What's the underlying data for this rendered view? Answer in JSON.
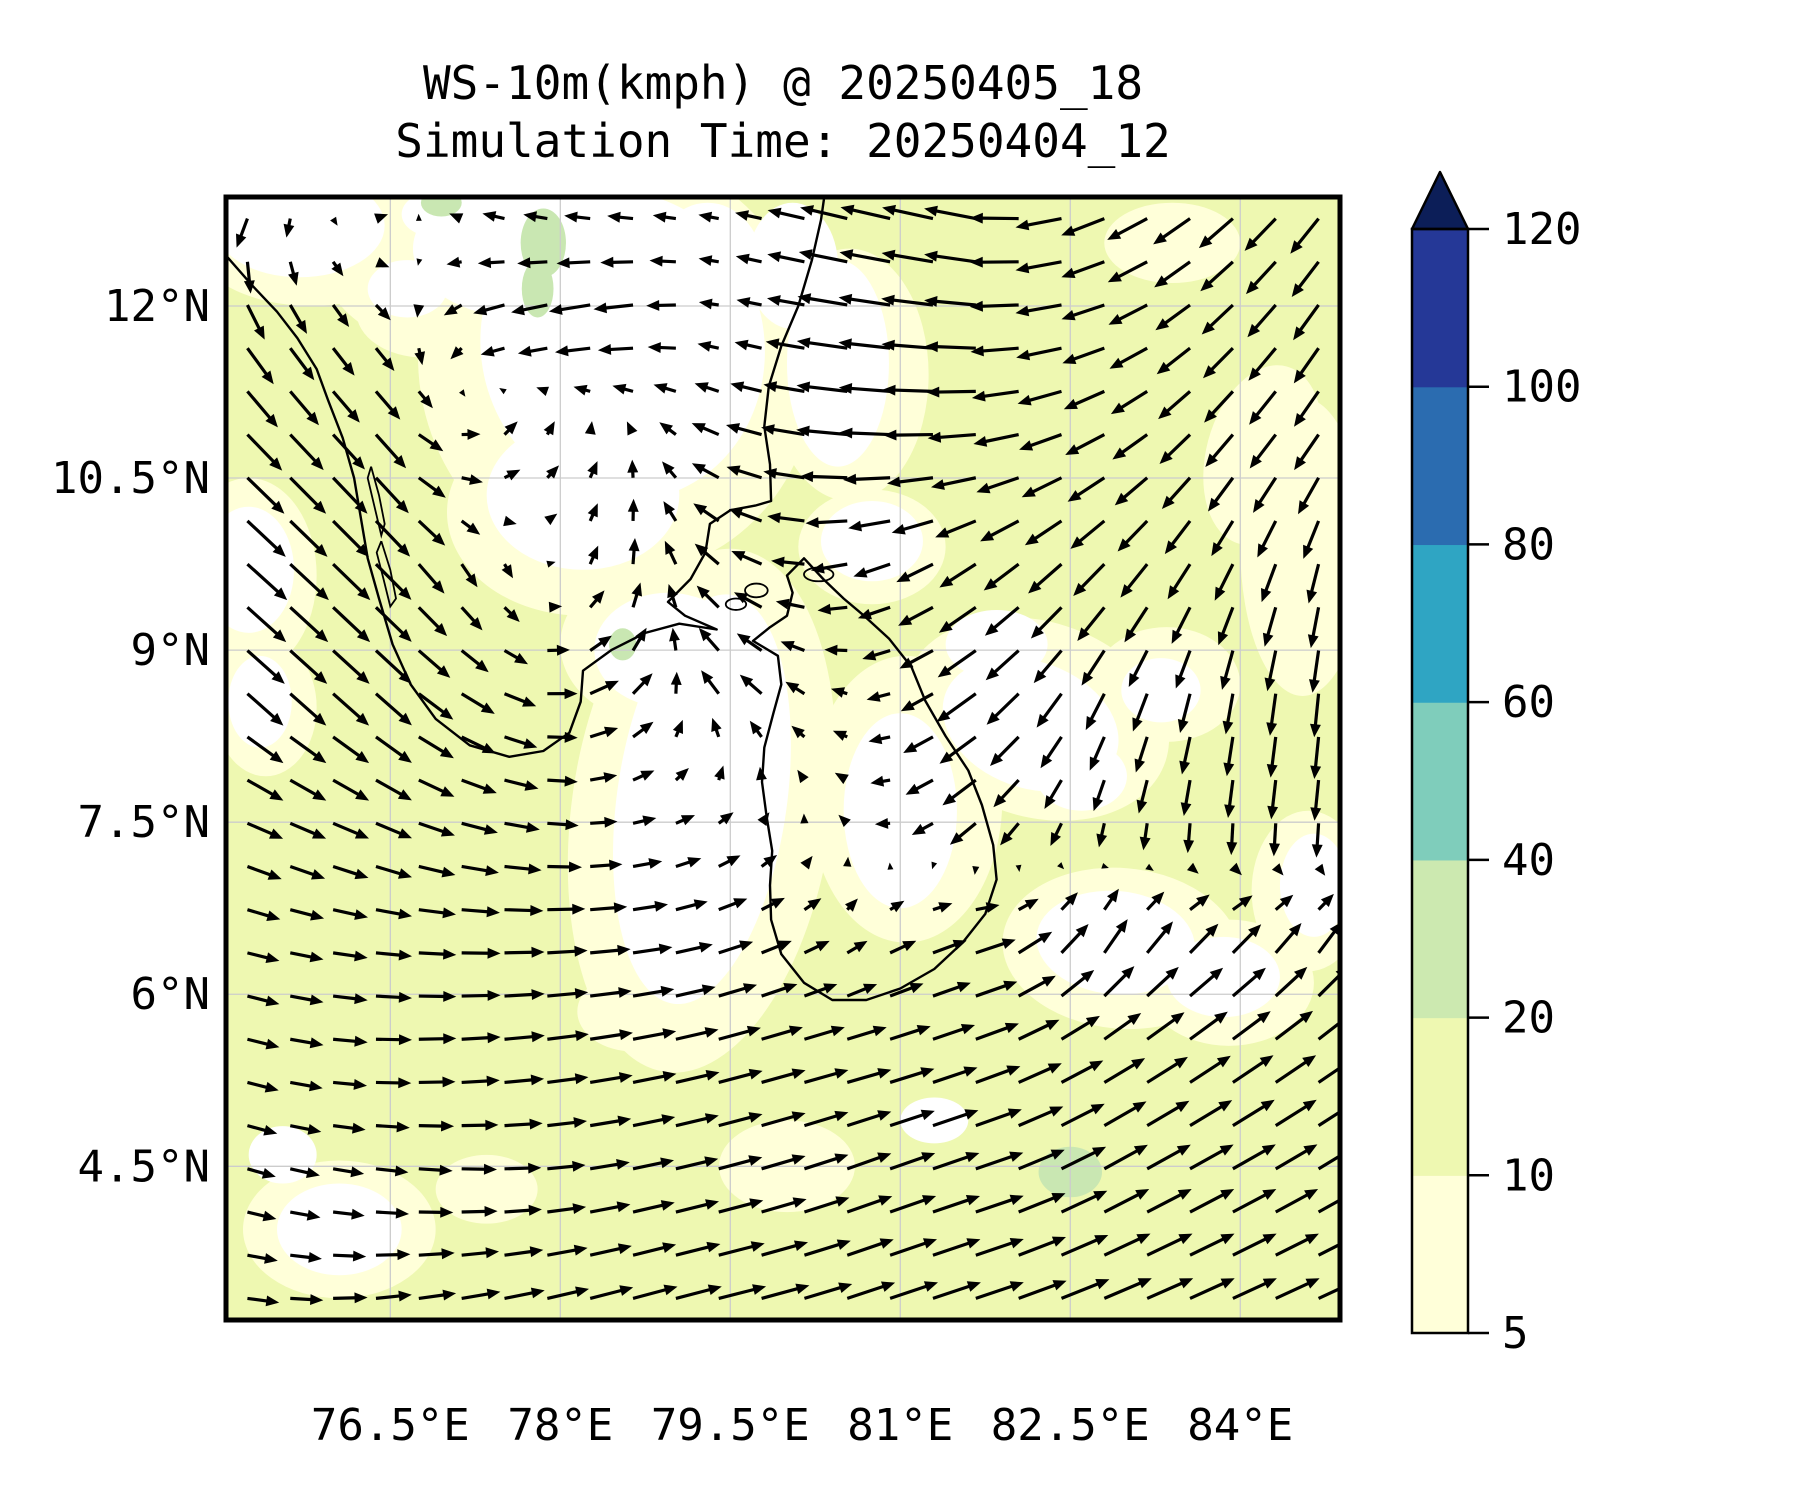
{
  "figure": {
    "title_line1": "WS-10m(kmph) @ 20250405_18",
    "title_line2": "Simulation Time: 20250404_12"
  },
  "chart_data": {
    "type": "quiver_map",
    "variable": "WS-10m",
    "units": "kmph",
    "valid_time": "20250405_18",
    "simulation_time": "20250404_12",
    "lon_range": [
      75.05,
      84.88
    ],
    "lat_range": [
      3.16,
      12.95
    ],
    "grid": true,
    "x_ticks": {
      "values": [
        76.5,
        78,
        79.5,
        81,
        82.5,
        84
      ],
      "labels": [
        "76.5°E",
        "78°E",
        "79.5°E",
        "81°E",
        "82.5°E",
        "84°E"
      ]
    },
    "y_ticks": {
      "values": [
        12,
        10.5,
        9,
        7.5,
        6,
        4.5
      ],
      "labels": [
        "12°N",
        "10.5°N",
        "9°N",
        "7.5°N",
        "6°N",
        "4.5°N"
      ]
    },
    "colorbar": {
      "levels": [
        5,
        10,
        20,
        40,
        60,
        80,
        100,
        120
      ],
      "tick_labels": [
        "5",
        "10",
        "20",
        "40",
        "60",
        "80",
        "100",
        "120"
      ],
      "segment_colors": [
        "#ffffd9",
        "#eef8b1",
        "#cce9b0",
        "#7fcdbb",
        "#2fa5c3",
        "#2b6cb0",
        "#253897"
      ],
      "over_color": "#0c1e58",
      "extend": "max"
    },
    "fill_colors": {
      "base": "#eef8b1",
      "pale": "#ffffd9",
      "white": "#ffffff",
      "green": "#c9e7b2"
    },
    "fill_regions": {
      "pale": [
        [
          78.5,
          11.5,
          1.75,
          1.85,
          -12
        ],
        [
          77.3,
          12.4,
          1.4,
          0.85,
          0
        ],
        [
          78.2,
          10.2,
          1.2,
          0.9,
          0
        ],
        [
          79.25,
          7.6,
          1.15,
          2.3,
          8
        ],
        [
          78.9,
          9.05,
          0.9,
          0.7,
          0
        ],
        [
          81.05,
          7.7,
          0.85,
          1.25,
          0
        ],
        [
          82.2,
          8.4,
          1.2,
          0.85,
          18
        ],
        [
          83.35,
          8.7,
          0.65,
          0.5,
          0
        ],
        [
          82.95,
          6.4,
          1.05,
          0.7,
          5
        ],
        [
          83.9,
          6.1,
          0.75,
          0.55,
          0
        ],
        [
          84.6,
          6.9,
          0.5,
          0.7,
          0
        ],
        [
          75.25,
          9.65,
          0.6,
          0.85,
          0
        ],
        [
          75.4,
          8.5,
          0.45,
          0.6,
          0
        ],
        [
          76.05,
          3.95,
          0.85,
          0.6,
          0
        ],
        [
          75.8,
          12.6,
          1.05,
          0.6,
          0
        ],
        [
          76.8,
          11.95,
          0.6,
          0.4,
          0
        ],
        [
          84.55,
          9.9,
          0.55,
          1.3,
          0
        ],
        [
          84.2,
          10.7,
          0.5,
          0.8,
          15
        ],
        [
          80.55,
          11.4,
          0.7,
          1.1,
          0
        ],
        [
          80.75,
          9.9,
          0.65,
          0.5,
          0
        ],
        [
          77.35,
          4.3,
          0.45,
          0.3,
          0
        ],
        [
          78.65,
          5.85,
          0.5,
          0.35,
          0
        ],
        [
          83.4,
          12.55,
          0.6,
          0.35,
          0
        ],
        [
          80.0,
          4.5,
          0.6,
          0.4,
          0
        ]
      ],
      "white": [
        [
          78.55,
          11.65,
          1.25,
          1.35,
          -12
        ],
        [
          77.65,
          12.5,
          0.95,
          0.6,
          0
        ],
        [
          78.2,
          10.35,
          0.85,
          0.65,
          0
        ],
        [
          79.3,
          12.3,
          0.5,
          0.6,
          0
        ],
        [
          79.25,
          7.7,
          0.75,
          1.8,
          8
        ],
        [
          78.95,
          9.0,
          0.65,
          0.5,
          0
        ],
        [
          81.0,
          7.6,
          0.5,
          0.85,
          0
        ],
        [
          82.15,
          8.35,
          0.8,
          0.55,
          20
        ],
        [
          81.85,
          9.05,
          0.45,
          0.3,
          0
        ],
        [
          83.3,
          8.65,
          0.35,
          0.28,
          0
        ],
        [
          82.6,
          7.9,
          0.4,
          0.3,
          0
        ],
        [
          82.9,
          6.45,
          0.7,
          0.45,
          5
        ],
        [
          83.85,
          6.15,
          0.5,
          0.35,
          0
        ],
        [
          84.65,
          6.95,
          0.3,
          0.45,
          0
        ],
        [
          75.25,
          9.7,
          0.4,
          0.55,
          0
        ],
        [
          75.35,
          8.55,
          0.28,
          0.4,
          0
        ],
        [
          76.05,
          3.95,
          0.55,
          0.4,
          0
        ],
        [
          75.55,
          4.6,
          0.3,
          0.25,
          0
        ],
        [
          75.7,
          12.7,
          0.75,
          0.45,
          0
        ],
        [
          76.65,
          12.15,
          0.35,
          0.25,
          0
        ],
        [
          76.9,
          12.8,
          0.3,
          0.2,
          0
        ],
        [
          80.05,
          12.35,
          0.4,
          0.55,
          0
        ],
        [
          80.45,
          11.5,
          0.45,
          0.9,
          0
        ],
        [
          80.75,
          9.95,
          0.45,
          0.35,
          0
        ],
        [
          81.3,
          4.9,
          0.3,
          0.2,
          0
        ]
      ],
      "green": [
        [
          77.85,
          12.55,
          0.2,
          0.3,
          0
        ],
        [
          77.8,
          12.15,
          0.14,
          0.25,
          0
        ],
        [
          76.95,
          12.9,
          0.18,
          0.12,
          0
        ],
        [
          78.55,
          9.05,
          0.12,
          0.14,
          0
        ],
        [
          82.5,
          4.45,
          0.28,
          0.22,
          0
        ]
      ]
    },
    "coastlines": {
      "india": [
        [
          75.05,
          12.44
        ],
        [
          75.28,
          12.18
        ],
        [
          75.5,
          11.95
        ],
        [
          75.68,
          11.72
        ],
        [
          75.85,
          11.45
        ],
        [
          75.95,
          11.18
        ],
        [
          76.08,
          10.85
        ],
        [
          76.18,
          10.5
        ],
        [
          76.24,
          10.15
        ],
        [
          76.3,
          9.8
        ],
        [
          76.4,
          9.45
        ],
        [
          76.52,
          9.05
        ],
        [
          76.68,
          8.7
        ],
        [
          76.9,
          8.4
        ],
        [
          77.2,
          8.17
        ],
        [
          77.55,
          8.07
        ],
        [
          77.85,
          8.12
        ],
        [
          78.08,
          8.28
        ],
        [
          78.18,
          8.55
        ],
        [
          78.2,
          8.82
        ],
        [
          78.45,
          9.0
        ],
        [
          78.75,
          9.15
        ],
        [
          79.05,
          9.23
        ],
        [
          79.38,
          9.18
        ],
        [
          79.1,
          9.3
        ],
        [
          78.95,
          9.42
        ],
        [
          79.15,
          9.62
        ],
        [
          79.28,
          9.85
        ],
        [
          79.32,
          10.1
        ],
        [
          79.5,
          10.22
        ],
        [
          79.72,
          10.26
        ],
        [
          79.86,
          10.3
        ],
        [
          79.85,
          10.62
        ],
        [
          79.8,
          10.95
        ],
        [
          79.84,
          11.3
        ],
        [
          79.95,
          11.65
        ],
        [
          80.1,
          12.0
        ],
        [
          80.22,
          12.4
        ],
        [
          80.3,
          12.75
        ],
        [
          80.33,
          12.96
        ]
      ],
      "sri_lanka": [
        [
          80.15,
          9.8
        ],
        [
          80.32,
          9.62
        ],
        [
          80.5,
          9.45
        ],
        [
          80.68,
          9.3
        ],
        [
          80.9,
          9.1
        ],
        [
          81.1,
          8.85
        ],
        [
          81.22,
          8.56
        ],
        [
          81.4,
          8.25
        ],
        [
          81.6,
          7.95
        ],
        [
          81.72,
          7.65
        ],
        [
          81.82,
          7.3
        ],
        [
          81.85,
          7.0
        ],
        [
          81.75,
          6.7
        ],
        [
          81.55,
          6.45
        ],
        [
          81.3,
          6.22
        ],
        [
          81.0,
          6.05
        ],
        [
          80.7,
          5.95
        ],
        [
          80.4,
          5.95
        ],
        [
          80.15,
          6.1
        ],
        [
          79.95,
          6.35
        ],
        [
          79.86,
          6.65
        ],
        [
          79.85,
          6.95
        ],
        [
          79.87,
          7.25
        ],
        [
          79.82,
          7.55
        ],
        [
          79.78,
          7.85
        ],
        [
          79.8,
          8.15
        ],
        [
          79.88,
          8.45
        ],
        [
          79.95,
          8.7
        ],
        [
          79.92,
          8.95
        ],
        [
          79.7,
          9.08
        ],
        [
          79.85,
          9.2
        ],
        [
          80.0,
          9.3
        ],
        [
          80.05,
          9.5
        ],
        [
          80.0,
          9.65
        ],
        [
          80.15,
          9.8
        ]
      ],
      "lakes": [
        [
          [
            76.33,
            10.6
          ],
          [
            76.4,
            10.35
          ],
          [
            76.45,
            10.1
          ],
          [
            76.42,
            10.0
          ],
          [
            76.36,
            10.25
          ],
          [
            76.3,
            10.5
          ],
          [
            76.33,
            10.6
          ]
        ],
        [
          [
            76.42,
            9.95
          ],
          [
            76.5,
            9.7
          ],
          [
            76.55,
            9.45
          ],
          [
            76.5,
            9.38
          ],
          [
            76.44,
            9.62
          ],
          [
            76.38,
            9.85
          ],
          [
            76.42,
            9.95
          ]
        ]
      ],
      "islets": [
        [
          79.55,
          9.4,
          0.09,
          0.05
        ],
        [
          79.73,
          9.52,
          0.1,
          0.06
        ],
        [
          80.28,
          9.66,
          0.13,
          0.06
        ]
      ]
    },
    "wind_grid": {
      "lons": [
        75.3,
        76.36,
        77.41,
        78.47,
        79.52,
        80.58,
        81.63,
        82.69,
        83.74,
        84.8
      ],
      "lats": [
        12.9,
        11.83,
        10.77,
        9.7,
        8.63,
        7.57,
        6.5,
        5.43,
        4.37,
        3.3
      ],
      "u": [
        [
          -4,
          3,
          -5,
          -6,
          -5,
          -12,
          -13,
          -11,
          -9,
          -7
        ],
        [
          6,
          4,
          -8,
          -12,
          -4,
          -13,
          -13,
          -11,
          -8,
          -6
        ],
        [
          9,
          8,
          5,
          1,
          -8,
          -13,
          -12,
          -10,
          -7,
          -6
        ],
        [
          10,
          9,
          2,
          2,
          -7,
          -9,
          -9,
          -8,
          -5,
          -2
        ],
        [
          9,
          9,
          8,
          7,
          -6,
          -4,
          -10,
          -5,
          -2,
          -1
        ],
        [
          9,
          9,
          9,
          6,
          3,
          -3,
          -8,
          -2,
          -1,
          -1
        ],
        [
          8,
          9,
          10,
          10,
          8,
          4,
          10,
          5,
          7,
          5
        ],
        [
          8,
          9,
          10,
          11,
          11,
          11,
          11,
          10,
          10,
          10
        ],
        [
          7,
          8,
          9,
          10,
          11,
          11,
          12,
          11,
          11,
          10
        ],
        [
          8,
          9,
          10,
          11,
          12,
          12,
          12,
          12,
          11,
          11
        ]
      ],
      "v": [
        [
          -7,
          2,
          2,
          1,
          1,
          3,
          3,
          -4,
          -7,
          -9
        ],
        [
          -9,
          -5,
          -3,
          -2,
          1,
          2,
          1,
          -3,
          -7,
          -9
        ],
        [
          -9,
          -9,
          4,
          4,
          3,
          1,
          -1,
          -5,
          -8,
          -9
        ],
        [
          -9,
          -9,
          -5,
          7,
          5,
          -2,
          -6,
          -8,
          -9,
          -10
        ],
        [
          -8,
          -8,
          -4,
          5,
          6,
          1,
          -7,
          -9,
          -10,
          -11
        ],
        [
          -4,
          -4,
          -2,
          1,
          3,
          2,
          -6,
          -7,
          -9,
          -10
        ],
        [
          -2,
          -1,
          0,
          1,
          3,
          3,
          3,
          9,
          7,
          8
        ],
        [
          -2,
          0,
          1,
          2,
          3,
          3,
          4,
          6,
          7,
          7
        ],
        [
          -2,
          -1,
          0,
          2,
          3,
          4,
          4,
          6,
          6,
          6
        ],
        [
          -1,
          1,
          2,
          3,
          3,
          4,
          4,
          5,
          5,
          5
        ]
      ]
    }
  }
}
